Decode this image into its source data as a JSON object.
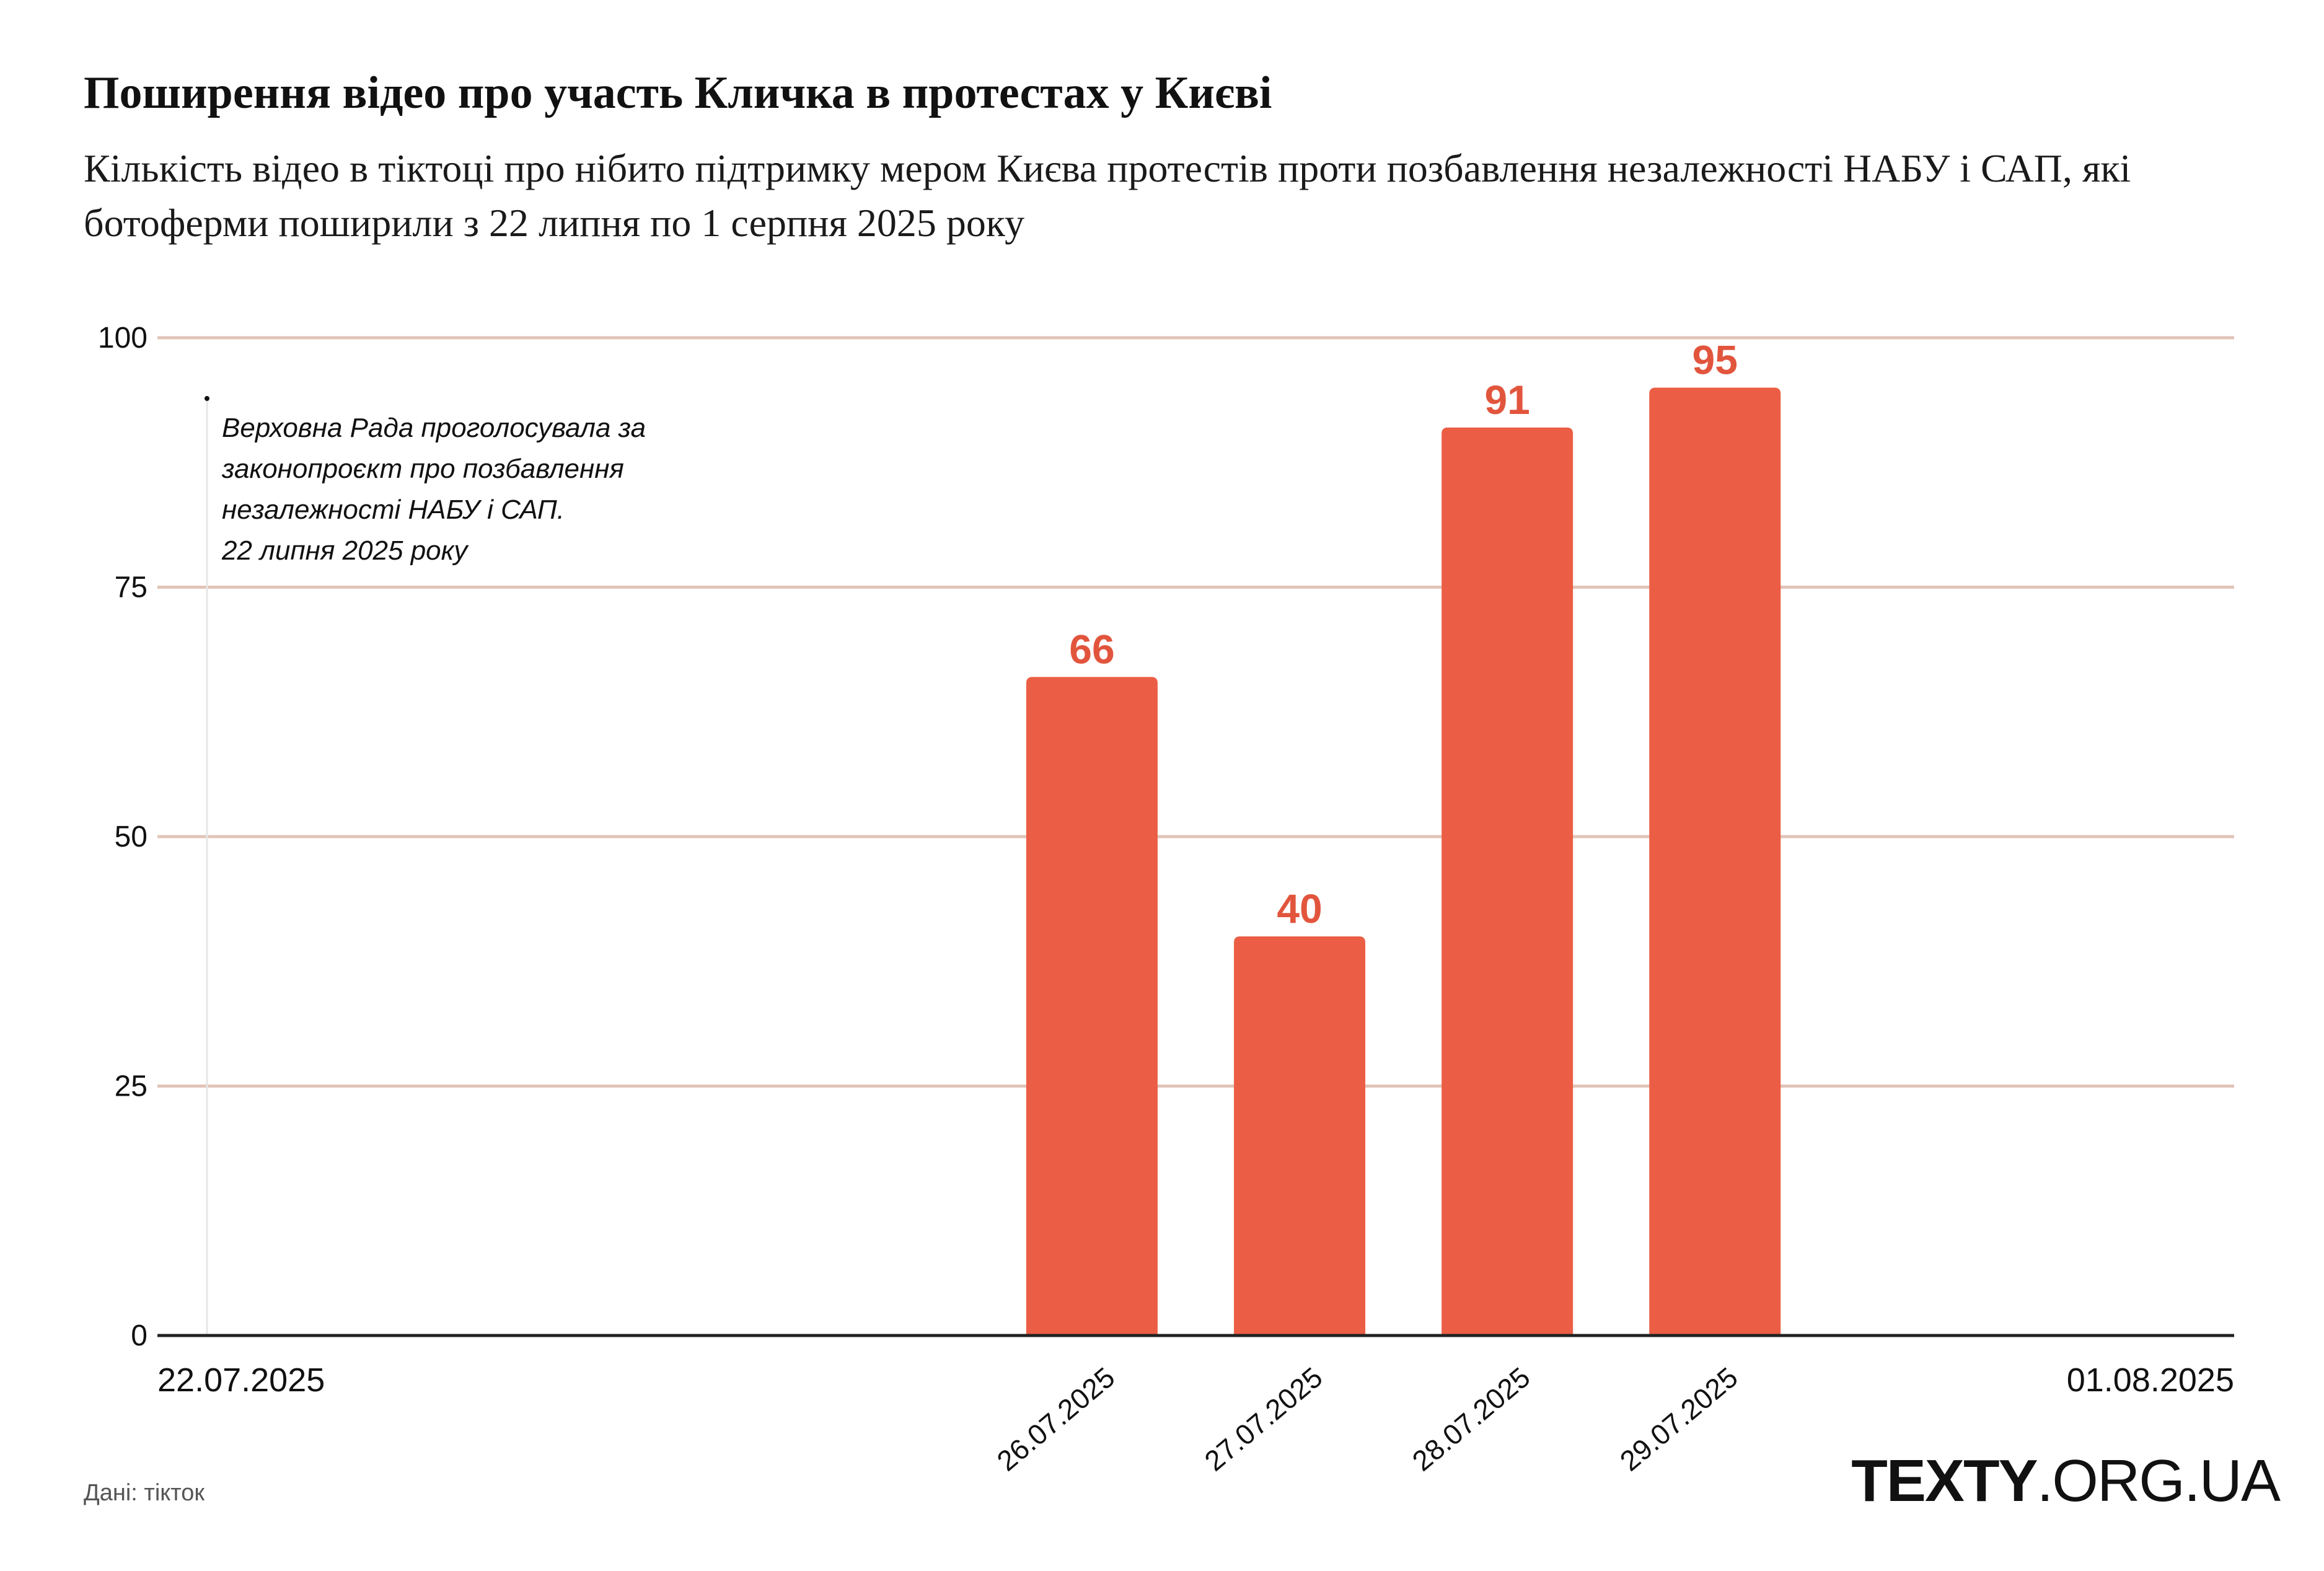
{
  "title": "Поширення відео про участь Кличка в протестах у Києві",
  "subtitle": "Кількість відео в тіктоці про нібито підтримку мером Києва протестів проти позбавлення незалежності НАБУ і САП, які ботоферми поширили з 22 липня по 1 серпня 2025 року",
  "source": "Дані: тікток",
  "brand": {
    "bold": "TEXTY",
    "rest": ".ORG.UA"
  },
  "colors": {
    "bar": "#EB5E45",
    "grid": "#E2C4B8",
    "label": "#E2553D",
    "axis": "#222222"
  },
  "chart_data": {
    "type": "bar",
    "x_range": [
      "22.07.2025",
      "01.08.2025"
    ],
    "x_edge_labels": [
      "22.07.2025",
      "01.08.2025"
    ],
    "categories": [
      "26.07.2025",
      "27.07.2025",
      "28.07.2025",
      "29.07.2025"
    ],
    "values": [
      66,
      40,
      91,
      95
    ],
    "ylim": [
      0,
      100
    ],
    "yticks": [
      "0",
      "25",
      "50",
      "75",
      "100"
    ],
    "grid": true,
    "annotation": {
      "date": "22.07.2025",
      "lines": [
        "Верховна Рада проголосувала за",
        "законопроєкт про позбавлення",
        "незалежності НАБУ і САП.",
        "22 липня 2025 року"
      ]
    }
  }
}
